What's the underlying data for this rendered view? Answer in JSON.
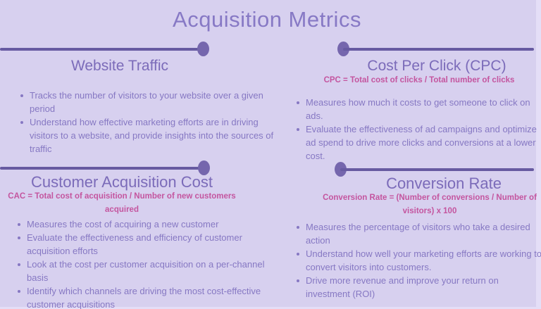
{
  "page": {
    "title": "Acquisition Metrics",
    "colors": {
      "background": "#d7d0ef",
      "edge_margin": "#e4def7",
      "divider_line": "#675aa1",
      "divider_dot": "#7566ad",
      "title_text": "#8779c5",
      "heading_text": "#7b6bb9",
      "body_text": "#8678c3",
      "formula_text": "#c4559f"
    }
  },
  "sections": [
    {
      "id": "website-traffic",
      "heading": "Website Traffic",
      "bullets": [
        "Tracks the number of visitors to your website over a given period",
        "Understand how effective marketing efforts are in driving visitors to a website, and provide insights into the sources of traffic"
      ]
    },
    {
      "id": "cost-per-click",
      "heading": "Cost Per Click (CPC)",
      "formula": "CPC = Total cost of clicks / Total number of clicks",
      "bullets": [
        "Measures how much it costs to get someone to click on ads.",
        "Evaluate the effectiveness of ad campaigns and optimize ad spend to drive more clicks and conversions at a lower cost."
      ]
    },
    {
      "id": "customer-acquisition-cost",
      "heading": "Customer Acquisition Cost",
      "formula": "CAC = Total cost of acquisition / Number of new customers acquired",
      "bullets": [
        "Measures the cost of acquiring a new customer",
        "Evaluate the effectiveness and efficiency of customer acquisition efforts",
        "Look at the cost per customer acquisition on a per-channel basis",
        "Identify which channels are driving the most cost-effective customer acquisitions"
      ]
    },
    {
      "id": "conversion-rate",
      "heading": "Conversion Rate",
      "formula": "Conversion Rate = (Number of conversions / Number of visitors) x 100",
      "bullets": [
        "Measures the percentage of visitors who take a desired action",
        "Understand how well your marketing efforts are working to convert visitors into customers.",
        "Drive more revenue and improve your return on investment (ROI)"
      ]
    }
  ]
}
